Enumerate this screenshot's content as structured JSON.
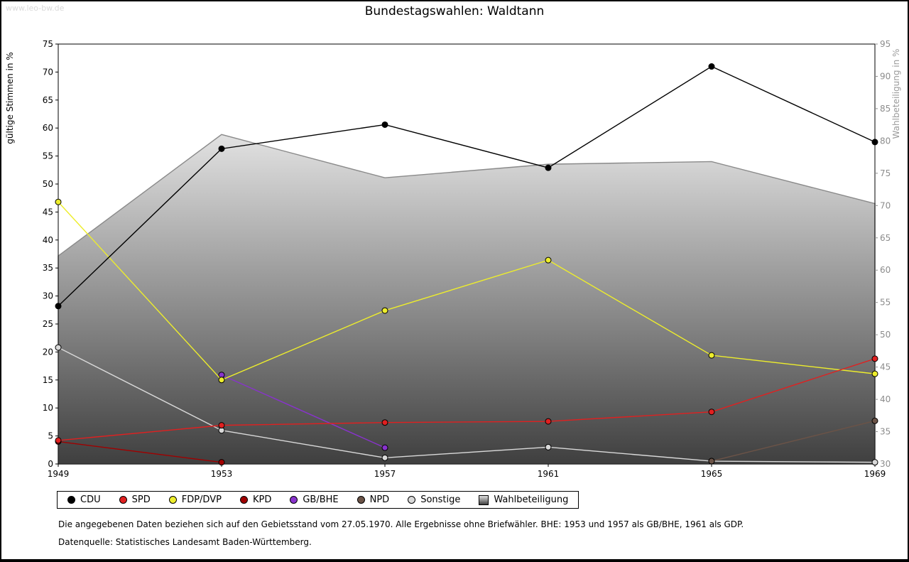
{
  "page": {
    "watermark": "www.leo-bw.de",
    "title": "Bundestagswahlen: Waldtann",
    "footnote1": "Die angegebenen Daten beziehen sich auf den Gebietsstand vom 27.05.1970. Alle Ergebnisse ohne Briefwähler. BHE: 1953 und 1957 als GB/BHE, 1961 als GDP.",
    "footnote2": "Datenquelle: Statistisches Landesamt Baden-Württemberg."
  },
  "chart_data": {
    "type": "line",
    "title": "Bundestagswahlen: Waldtann",
    "x": [
      1949,
      1953,
      1957,
      1961,
      1965,
      1969
    ],
    "left_axis": {
      "label": "gültige Stimmen in %",
      "min": 0,
      "max": 75,
      "step": 5
    },
    "right_axis": {
      "label": "Wahlbeteiligung in %",
      "min": 30,
      "max": 95,
      "step": 5
    },
    "grid": false,
    "legend_position": "bottom",
    "series": [
      {
        "name": "CDU",
        "color": "#000000",
        "axis": "left",
        "values": [
          28.2,
          56.3,
          60.6,
          52.9,
          71.0,
          57.5
        ]
      },
      {
        "name": "SPD",
        "color": "#e02020",
        "axis": "left",
        "values": [
          4.2,
          6.9,
          7.4,
          7.6,
          9.3,
          18.8
        ]
      },
      {
        "name": "FDP/DVP",
        "color": "#eded2c",
        "axis": "left",
        "values": [
          46.8,
          15.0,
          27.4,
          36.4,
          19.4,
          16.1
        ]
      },
      {
        "name": "KPD",
        "color": "#a00000",
        "axis": "left",
        "values": [
          4.0,
          0.3,
          null,
          null,
          null,
          null
        ]
      },
      {
        "name": "GB/BHE",
        "color": "#8833cc",
        "axis": "left",
        "values": [
          null,
          15.9,
          2.9,
          null,
          null,
          null
        ]
      },
      {
        "name": "NPD",
        "color": "#6b5347",
        "axis": "left",
        "values": [
          null,
          null,
          null,
          null,
          0.5,
          7.7
        ]
      },
      {
        "name": "Sonstige",
        "color": "#d9d9d9",
        "axis": "left",
        "values": [
          20.8,
          6.0,
          1.1,
          3.0,
          0.5,
          0.3
        ]
      },
      {
        "name": "Wahlbeteiligung",
        "type": "area",
        "axis": "right",
        "stroke": "#8a8a8a",
        "fill_top": "#e2e2e2",
        "fill_bottom": "#3f3f3f",
        "values": [
          62.2,
          81.0,
          74.3,
          76.4,
          76.8,
          70.3
        ]
      }
    ]
  }
}
